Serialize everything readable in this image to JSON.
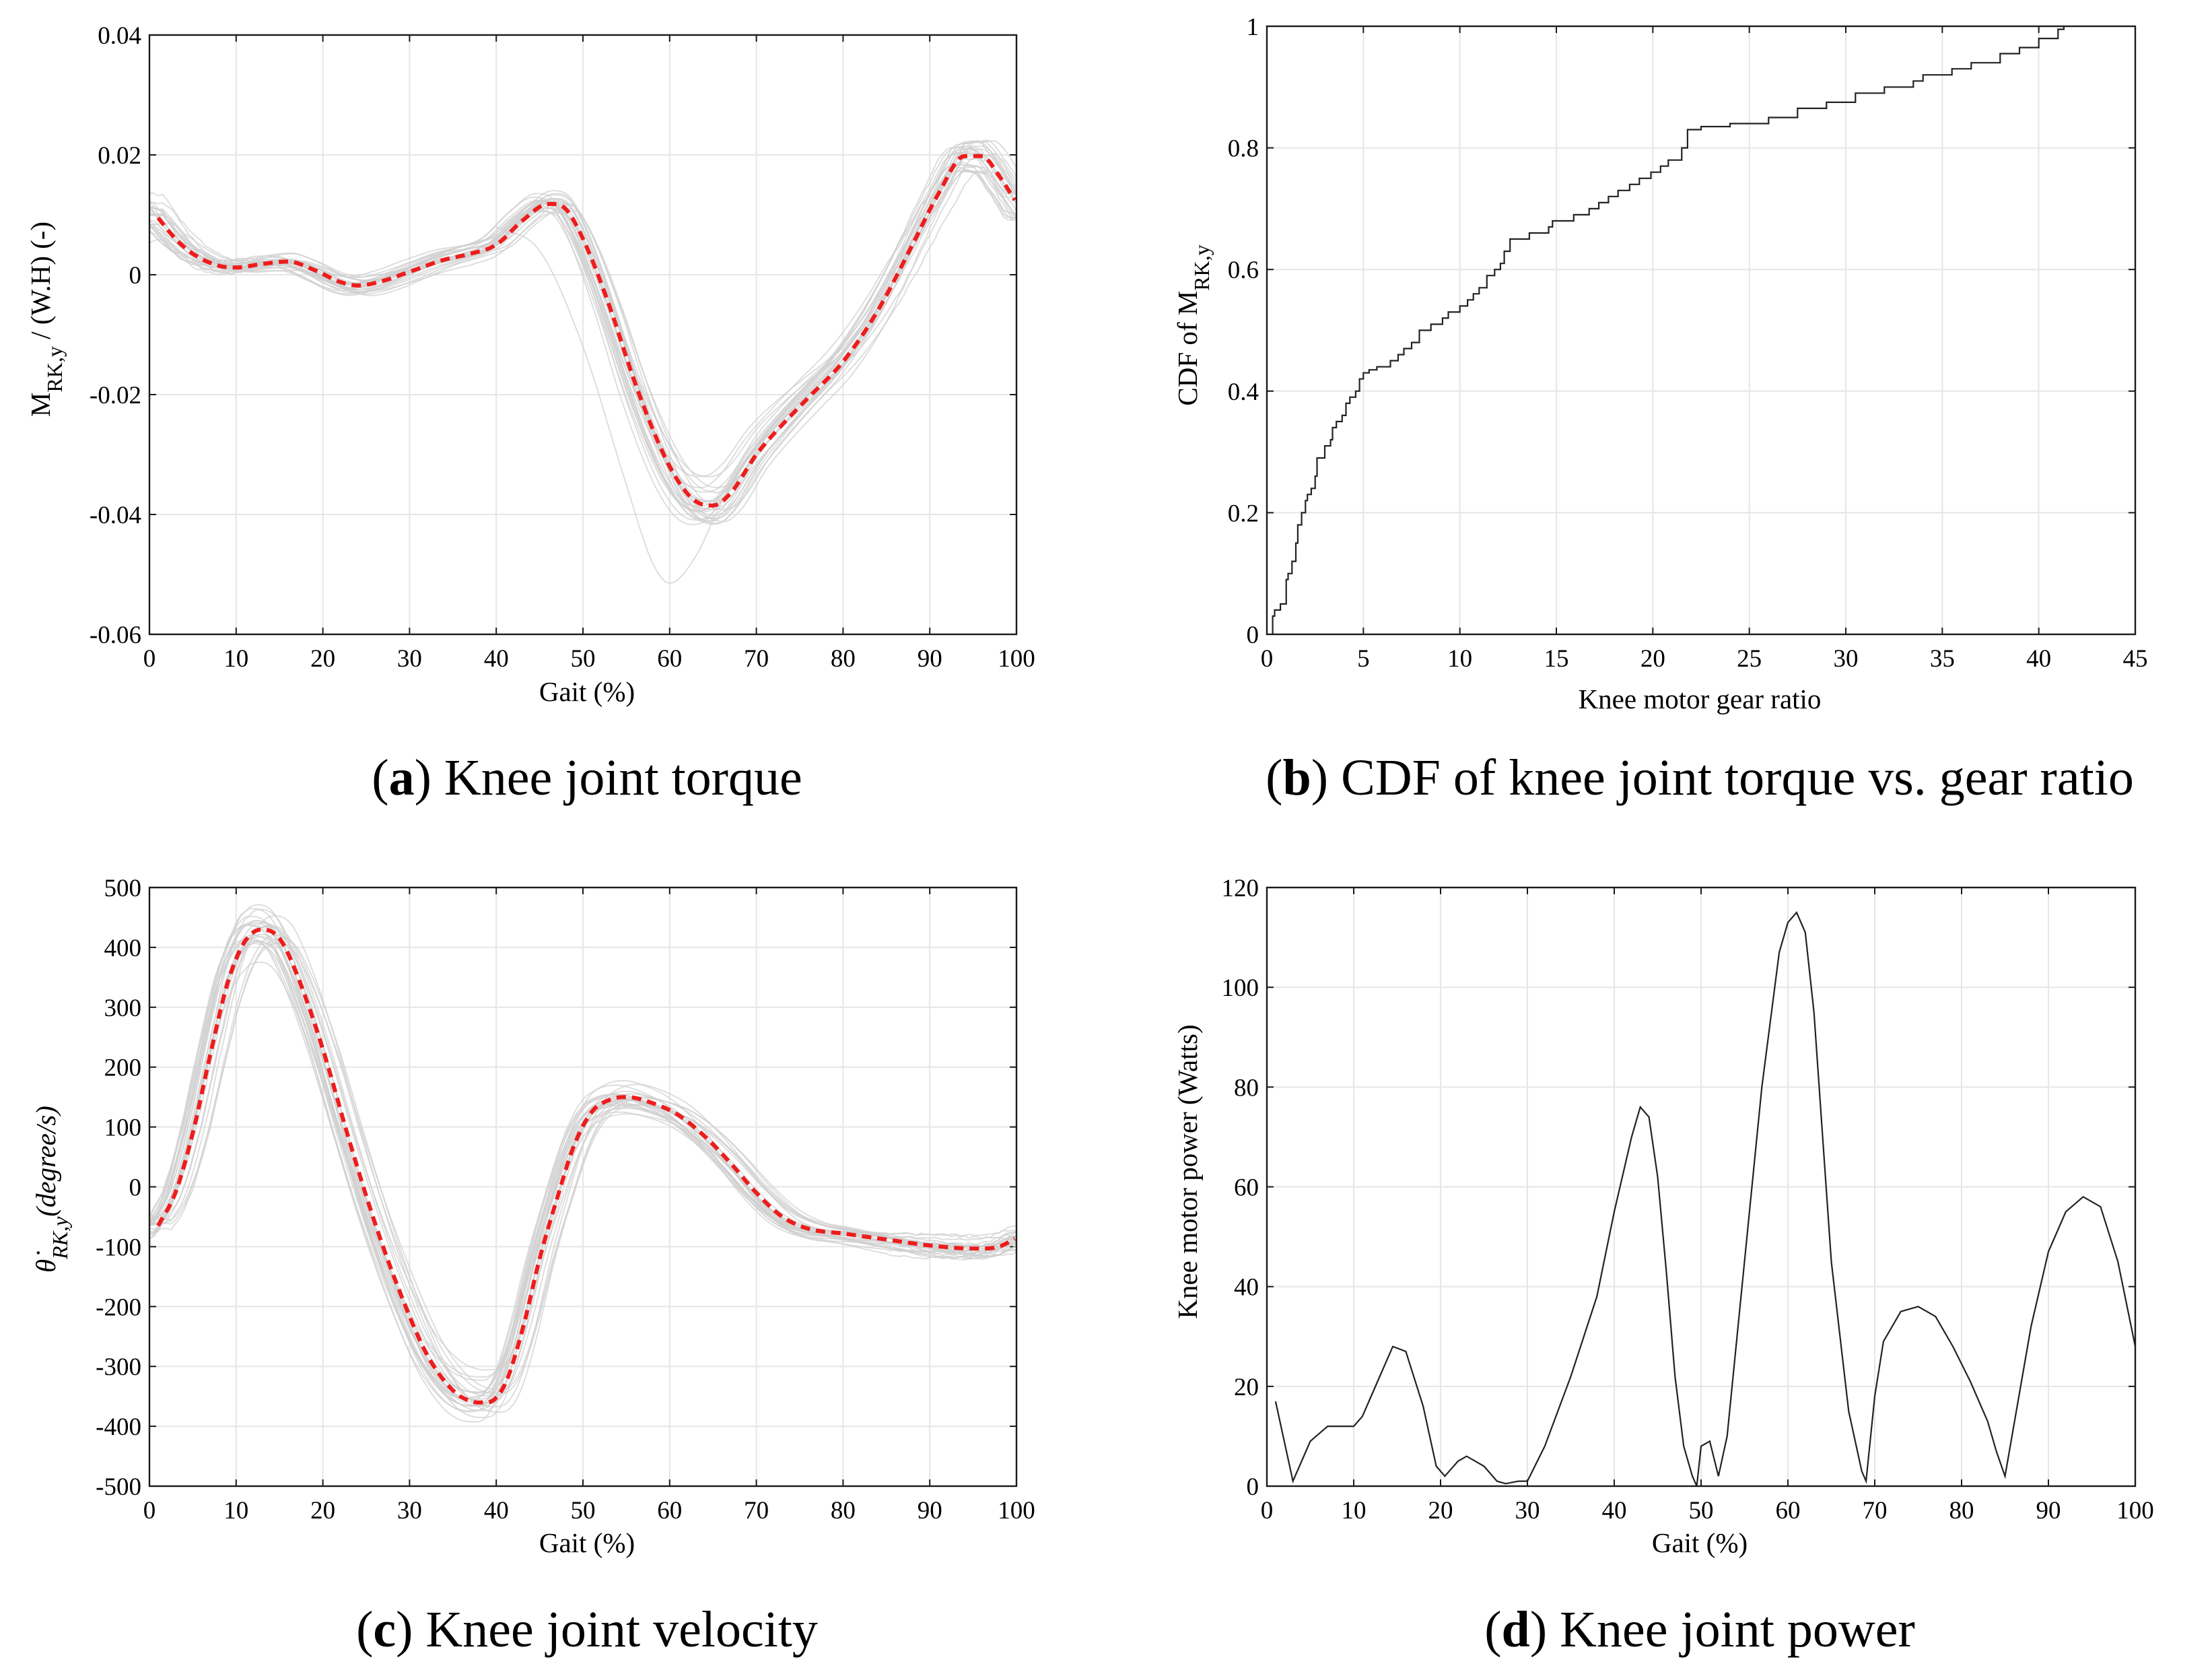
{
  "chart_data": [
    {
      "id": "a",
      "type": "line",
      "caption": {
        "open": "(",
        "letter": "a",
        "rest": ") Knee joint torque"
      },
      "xlabel": "Gait (%)",
      "ylabel": {
        "main": "M",
        "sub": "RK,y",
        "rest": " / (W.H) (-)"
      },
      "xlim": [
        0,
        100
      ],
      "ylim": [
        -0.06,
        0.04
      ],
      "xticks": [
        0,
        10,
        20,
        30,
        40,
        50,
        60,
        70,
        80,
        90,
        100
      ],
      "yticks": [
        -0.06,
        -0.04,
        -0.02,
        0,
        0.02,
        0.04
      ],
      "xtick_labels": [
        "0",
        "10",
        "20",
        "30",
        "40",
        "50",
        "60",
        "70",
        "80",
        "90",
        "100"
      ],
      "ytick_labels": [
        "-0.06",
        "-0.04",
        "-0.02",
        "0",
        "0.02",
        "0.04"
      ],
      "grid": true,
      "mean_color": "#ee1c1c",
      "trial_color": "#cfcfcf",
      "mean": {
        "x": [
          1,
          3,
          5,
          8,
          10,
          13,
          16,
          19,
          22,
          24,
          27,
          30,
          34,
          37,
          40,
          43,
          46,
          48,
          50,
          53,
          56,
          59,
          61,
          63,
          65,
          67,
          70,
          73,
          76,
          80,
          84,
          88,
          91,
          94,
          96,
          98,
          100
        ],
        "y": [
          0.0095,
          0.006,
          0.0035,
          0.0015,
          0.0012,
          0.0018,
          0.0022,
          0.0008,
          -0.0012,
          -0.0018,
          -0.001,
          0.0005,
          0.0025,
          0.0035,
          0.005,
          0.009,
          0.0118,
          0.011,
          0.006,
          -0.005,
          -0.018,
          -0.029,
          -0.0345,
          -0.0378,
          -0.0385,
          -0.0365,
          -0.03,
          -0.025,
          -0.0205,
          -0.0145,
          -0.006,
          0.005,
          0.0135,
          0.0198,
          0.0198,
          0.0165,
          0.012
        ]
      },
      "outlier": {
        "x": [
          40,
          45,
          50,
          55,
          58,
          60,
          63,
          66,
          70
        ],
        "y": [
          0.008,
          0.004,
          -0.012,
          -0.035,
          -0.048,
          -0.0515,
          -0.047,
          -0.038,
          -0.03
        ]
      },
      "num_trials": 26
    },
    {
      "id": "b",
      "type": "line",
      "caption": {
        "open": "(",
        "letter": "b",
        "rest": ") CDF of knee joint torque vs. gear ratio"
      },
      "xlabel": "Knee motor gear ratio",
      "ylabel": {
        "main": "CDF of M",
        "sub": "RK,y",
        "rest": ""
      },
      "xlim": [
        0,
        45
      ],
      "ylim": [
        0,
        1
      ],
      "xticks": [
        0,
        5,
        10,
        15,
        20,
        25,
        30,
        35,
        40,
        45
      ],
      "yticks": [
        0,
        0.2,
        0.4,
        0.6,
        0.8,
        1
      ],
      "xtick_labels": [
        "0",
        "5",
        "10",
        "15",
        "20",
        "25",
        "30",
        "35",
        "40",
        "45"
      ],
      "ytick_labels": [
        "0",
        "0.2",
        "0.4",
        "0.6",
        "0.8",
        "1"
      ],
      "grid": true,
      "line_color": "#222222",
      "series": {
        "x": [
          0.3,
          0.4,
          0.7,
          1.0,
          1.1,
          1.3,
          1.5,
          1.6,
          1.8,
          2.0,
          2.1,
          2.3,
          2.5,
          2.6,
          3.0,
          3.3,
          3.4,
          3.6,
          3.9,
          4.1,
          4.3,
          4.6,
          4.8,
          5.0,
          5.3,
          5.7,
          6.0,
          6.4,
          6.8,
          7.1,
          7.5,
          7.9,
          8.2,
          8.5,
          8.8,
          9.1,
          9.4,
          9.7,
          10.0,
          10.4,
          10.7,
          11.0,
          11.2,
          11.4,
          11.8,
          12.1,
          12.3,
          12.6,
          13.1,
          13.6,
          14.2,
          14.6,
          14.8,
          15.2,
          15.9,
          16.4,
          16.7,
          17.2,
          17.7,
          18.2,
          18.8,
          19.3,
          19.9,
          20.4,
          20.8,
          21.2,
          21.5,
          21.8,
          22.5,
          24.0,
          26.0,
          27.5,
          29.0,
          30.5,
          32.0,
          33.5,
          34.0,
          35.5,
          36.5,
          38.0,
          39.0,
          40.0,
          41.0,
          41.3
        ],
        "y": [
          0.03,
          0.04,
          0.05,
          0.09,
          0.1,
          0.12,
          0.15,
          0.18,
          0.2,
          0.22,
          0.23,
          0.24,
          0.26,
          0.29,
          0.31,
          0.32,
          0.34,
          0.35,
          0.36,
          0.38,
          0.39,
          0.4,
          0.42,
          0.43,
          0.435,
          0.44,
          0.44,
          0.45,
          0.46,
          0.47,
          0.48,
          0.5,
          0.5,
          0.51,
          0.51,
          0.52,
          0.53,
          0.53,
          0.54,
          0.55,
          0.56,
          0.57,
          0.57,
          0.59,
          0.6,
          0.61,
          0.63,
          0.65,
          0.65,
          0.66,
          0.66,
          0.67,
          0.68,
          0.68,
          0.69,
          0.69,
          0.7,
          0.71,
          0.72,
          0.73,
          0.74,
          0.75,
          0.76,
          0.77,
          0.78,
          0.78,
          0.8,
          0.83,
          0.835,
          0.84,
          0.85,
          0.865,
          0.875,
          0.89,
          0.9,
          0.91,
          0.92,
          0.93,
          0.94,
          0.955,
          0.965,
          0.98,
          0.995,
          1.0
        ]
      }
    },
    {
      "id": "c",
      "type": "line",
      "caption": {
        "open": "(",
        "letter": "c",
        "rest": ") Knee joint velocity"
      },
      "xlabel": "Gait (%)",
      "ylabel": {
        "main": "θ̇",
        "sub": "RK,y",
        "rest": "(degree/s)"
      },
      "xlim": [
        0,
        100
      ],
      "ylim": [
        -500,
        500
      ],
      "xticks": [
        0,
        10,
        20,
        30,
        40,
        50,
        60,
        70,
        80,
        90,
        100
      ],
      "yticks": [
        -500,
        -400,
        -300,
        -200,
        -100,
        0,
        100,
        200,
        300,
        400,
        500
      ],
      "xtick_labels": [
        "0",
        "10",
        "20",
        "30",
        "40",
        "50",
        "60",
        "70",
        "80",
        "90",
        "100"
      ],
      "ytick_labels": [
        "-500",
        "-400",
        "-300",
        "-200",
        "-100",
        "0",
        "100",
        "200",
        "300",
        "400",
        "500"
      ],
      "grid": true,
      "mean_color": "#ee1c1c",
      "trial_color": "#cfcfcf",
      "mean": {
        "x": [
          1,
          3,
          5,
          7,
          9,
          11,
          13,
          15,
          17,
          20,
          23,
          26,
          29,
          32,
          35,
          37,
          39,
          41,
          43,
          45,
          47,
          49,
          51,
          53,
          55,
          58,
          61,
          64,
          67,
          70,
          73,
          76,
          80,
          85,
          90,
          95,
          98,
          100
        ],
        "y": [
          -65,
          -10,
          90,
          220,
          340,
          410,
          430,
          415,
          355,
          230,
          80,
          -60,
          -180,
          -280,
          -340,
          -358,
          -360,
          -330,
          -240,
          -120,
          -20,
          70,
          125,
          145,
          150,
          140,
          120,
          85,
          40,
          -10,
          -50,
          -70,
          -78,
          -88,
          -98,
          -103,
          -100,
          -85
        ]
      },
      "num_trials": 26
    },
    {
      "id": "d",
      "type": "line",
      "caption": {
        "open": "(",
        "letter": "d",
        "rest": ") Knee joint power"
      },
      "xlabel": "Gait (%)",
      "ylabel": {
        "main": "Knee motor power (Watts)",
        "sub": "",
        "rest": ""
      },
      "xlim": [
        0,
        100
      ],
      "ylim": [
        0,
        120
      ],
      "xticks": [
        0,
        10,
        20,
        30,
        40,
        50,
        60,
        70,
        80,
        90,
        100
      ],
      "yticks": [
        0,
        20,
        40,
        60,
        80,
        100,
        120
      ],
      "xtick_labels": [
        "0",
        "10",
        "20",
        "30",
        "40",
        "50",
        "60",
        "70",
        "80",
        "90",
        "100"
      ],
      "ytick_labels": [
        "0",
        "20",
        "40",
        "60",
        "80",
        "100",
        "120"
      ],
      "grid": true,
      "line_color": "#222222",
      "series": {
        "x": [
          1,
          3,
          5,
          7,
          9,
          10,
          11,
          13,
          14.5,
          16,
          18,
          19.5,
          20.5,
          22,
          23,
          25,
          26.5,
          27.5,
          29,
          30,
          32,
          35,
          38,
          40,
          42,
          43,
          44,
          45,
          46,
          47,
          48,
          49,
          49.5,
          50,
          51,
          52,
          53,
          55,
          57,
          59,
          60,
          61,
          62,
          63,
          64,
          65,
          67,
          68.5,
          69,
          70,
          71,
          73,
          75,
          77,
          79,
          81,
          83,
          84,
          85,
          86,
          88,
          90,
          92,
          94,
          96,
          98,
          100
        ],
        "y": [
          17,
          1,
          9,
          12,
          12,
          12,
          14,
          22,
          28,
          27,
          16,
          4,
          2,
          5,
          6,
          4,
          1,
          0.5,
          1,
          1,
          8,
          22,
          38,
          55,
          70,
          76,
          74,
          62,
          43,
          22,
          8,
          2,
          0,
          8,
          9,
          2,
          10,
          45,
          80,
          107,
          113,
          115,
          111,
          95,
          70,
          45,
          15,
          3,
          1,
          18,
          29,
          35,
          36,
          34,
          28,
          21,
          13,
          7,
          2,
          12,
          32,
          47,
          55,
          58,
          56,
          45,
          28
        ]
      }
    }
  ]
}
